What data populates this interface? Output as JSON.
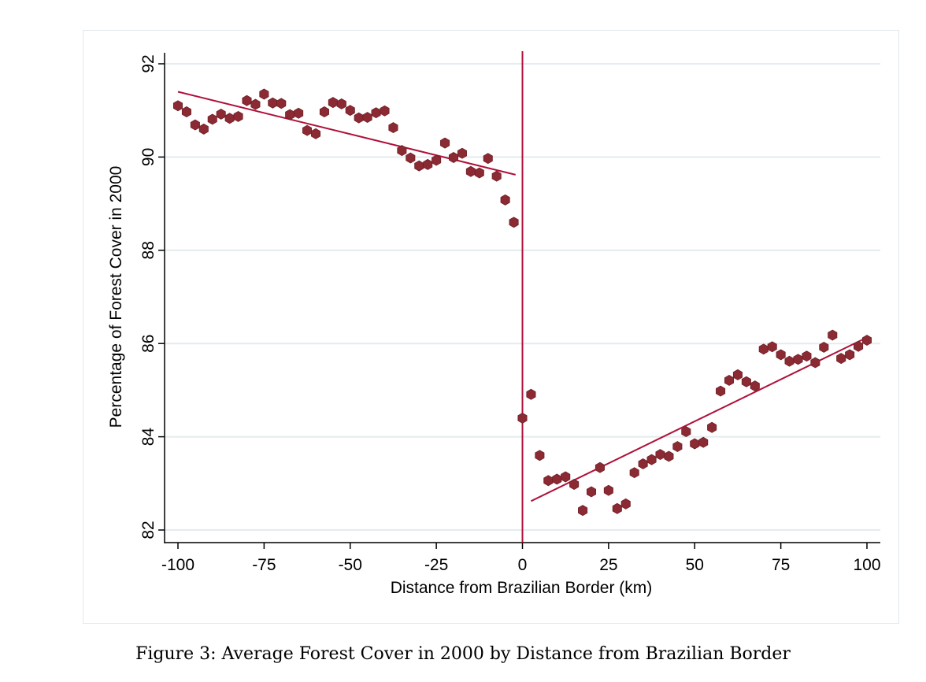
{
  "caption": "Figure 3: Average Forest Cover in 2000 by Distance from Brazilian Border",
  "chart_data": {
    "type": "scatter",
    "xlabel": "Distance from Brazilian Border (km)",
    "ylabel": "Percentage of Forest Cover in 2000",
    "xlim": [
      -100,
      100
    ],
    "ylim": [
      82,
      92
    ],
    "xticks": [
      "-100",
      "-75",
      "-50",
      "-25",
      "0",
      "25",
      "50",
      "75",
      "100"
    ],
    "yticks": [
      "82",
      "84",
      "86",
      "88",
      "90",
      "92"
    ],
    "grid": "horizontal",
    "cutoff": 0,
    "colors": {
      "marker": "#8b2a33",
      "fit_line": "#b0103a",
      "cutoff_line": "#b0103a",
      "grid": "#e3ecef"
    },
    "series": [
      {
        "x": [
          -100,
          -97.5,
          -95,
          -92.5,
          -90,
          -87.5,
          -85,
          -82.5,
          -80,
          -77.5,
          -75,
          -72.5,
          -70,
          -67.5,
          -65,
          -62.5,
          -60,
          -57.5,
          -55,
          -52.5,
          -50,
          -47.5,
          -45,
          -42.5,
          -40,
          -37.5,
          -35,
          -32.5,
          -30,
          -27.5,
          -25,
          -22.5,
          -20,
          -17.5,
          -15,
          -12.5,
          -10,
          -7.5,
          -5,
          -2.5,
          0,
          2.5,
          5,
          7.5,
          10,
          12.5,
          15,
          17.5,
          20,
          22.5,
          25,
          27.5,
          30,
          32.5,
          35,
          37.5,
          40,
          42.5,
          45,
          47.5,
          50,
          52.5,
          55,
          57.5,
          60,
          62.5,
          65,
          67.5,
          70,
          72.5,
          75,
          77.5,
          80,
          82.5,
          85,
          87.5,
          90,
          92.5,
          95,
          97.5,
          100
        ],
        "y": [
          91.1,
          90.97,
          90.69,
          90.6,
          90.81,
          90.92,
          90.83,
          90.87,
          91.21,
          91.13,
          91.35,
          91.16,
          91.15,
          90.91,
          90.94,
          90.57,
          90.5,
          90.97,
          91.17,
          91.14,
          91.0,
          90.84,
          90.85,
          90.95,
          90.99,
          90.63,
          90.14,
          89.98,
          89.81,
          89.84,
          89.93,
          90.3,
          89.99,
          90.08,
          89.69,
          89.66,
          89.97,
          89.59,
          89.08,
          88.6,
          84.4,
          84.91,
          83.6,
          83.06,
          83.09,
          83.14,
          82.98,
          82.42,
          82.82,
          83.34,
          82.85,
          82.46,
          82.56,
          83.23,
          83.42,
          83.51,
          83.62,
          83.58,
          83.79,
          84.11,
          83.85,
          83.88,
          84.2,
          84.98,
          85.21,
          85.33,
          85.18,
          85.09,
          85.88,
          85.93,
          85.76,
          85.62,
          85.66,
          85.73,
          85.59,
          85.92,
          86.18,
          85.68,
          85.76,
          85.94,
          86.07
        ]
      }
    ],
    "fit_lines": [
      {
        "x": [
          -100,
          -2
        ],
        "y": [
          91.4,
          89.62
        ]
      },
      {
        "x": [
          2.5,
          100
        ],
        "y": [
          82.62,
          86.13
        ]
      }
    ]
  }
}
